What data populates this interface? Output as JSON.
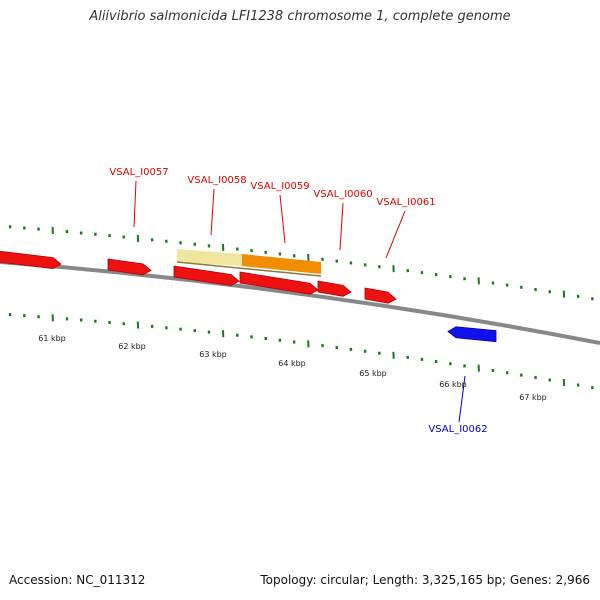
{
  "title": "Aliivibrio salmonicida LFI1238 chromosome 1, complete genome",
  "footer": {
    "accession": "Accession: NC_011312",
    "summary": "Topology: circular; Length: 3,325,165 bp; Genes: 2,966"
  },
  "colors": {
    "forward_gene": "#ee1111",
    "reverse_gene": "#1111ee",
    "label_forward": "#dd0000",
    "label_reverse": "#0000cc",
    "backbone": "#888888",
    "tick": "#1a7a1a",
    "highlight_light": "#f0e6a0",
    "highlight_orange": "#f28c00"
  },
  "scale": {
    "tick_labels": [
      "61 kbp",
      "62 kbp",
      "63 kbp",
      "64 kbp",
      "65 kbp",
      "66 kbp",
      "67 kbp"
    ]
  },
  "genes": [
    {
      "id": "g0",
      "label": "",
      "strand": "forward"
    },
    {
      "id": "g1",
      "label": "",
      "strand": "forward"
    },
    {
      "id": "g2",
      "label": "",
      "strand": "forward"
    },
    {
      "id": "g3",
      "label": "",
      "strand": "forward"
    },
    {
      "id": "g4",
      "label": "",
      "strand": "forward"
    },
    {
      "id": "g5",
      "label": "",
      "strand": "forward"
    },
    {
      "id": "g6",
      "label": "",
      "strand": "reverse"
    }
  ],
  "gene_labels": [
    {
      "text": "VSAL_I0057",
      "strand": "forward"
    },
    {
      "text": "VSAL_I0058",
      "strand": "forward"
    },
    {
      "text": "VSAL_I0059",
      "strand": "forward"
    },
    {
      "text": "VSAL_I0060",
      "strand": "forward"
    },
    {
      "text": "VSAL_I0061",
      "strand": "forward"
    },
    {
      "text": "VSAL_I0062",
      "strand": "reverse"
    }
  ]
}
